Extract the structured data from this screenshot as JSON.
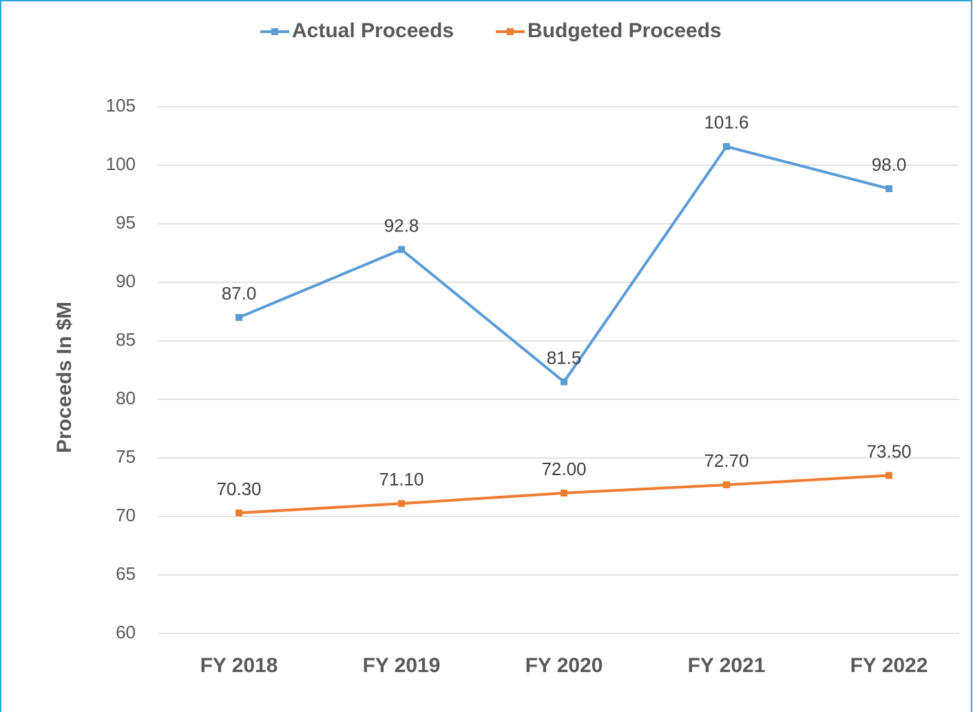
{
  "chart_data": {
    "type": "line",
    "y_axis_label": "Proceeds In $M",
    "categories": [
      "FY 2018",
      "FY 2019",
      "FY 2020",
      "FY 2021",
      "FY 2022"
    ],
    "series": [
      {
        "name": "Actual Proceeds",
        "color": "#5b9bd5",
        "values": [
          87.0,
          92.8,
          81.5,
          101.6,
          98.0
        ],
        "value_labels": [
          "87.0",
          "92.8",
          "81.5",
          "101.6",
          "98.0"
        ]
      },
      {
        "name": "Budgeted Proceeds",
        "color": "#ed7d31",
        "values": [
          70.3,
          71.1,
          72.0,
          72.7,
          73.5
        ],
        "value_labels": [
          "70.30",
          "71.10",
          "72.00",
          "72.70",
          "73.50"
        ]
      }
    ],
    "ylim": [
      60,
      105
    ],
    "yticks": [
      60,
      65,
      70,
      75,
      80,
      85,
      90,
      95,
      100,
      105
    ],
    "grid": true,
    "legend": "top"
  }
}
